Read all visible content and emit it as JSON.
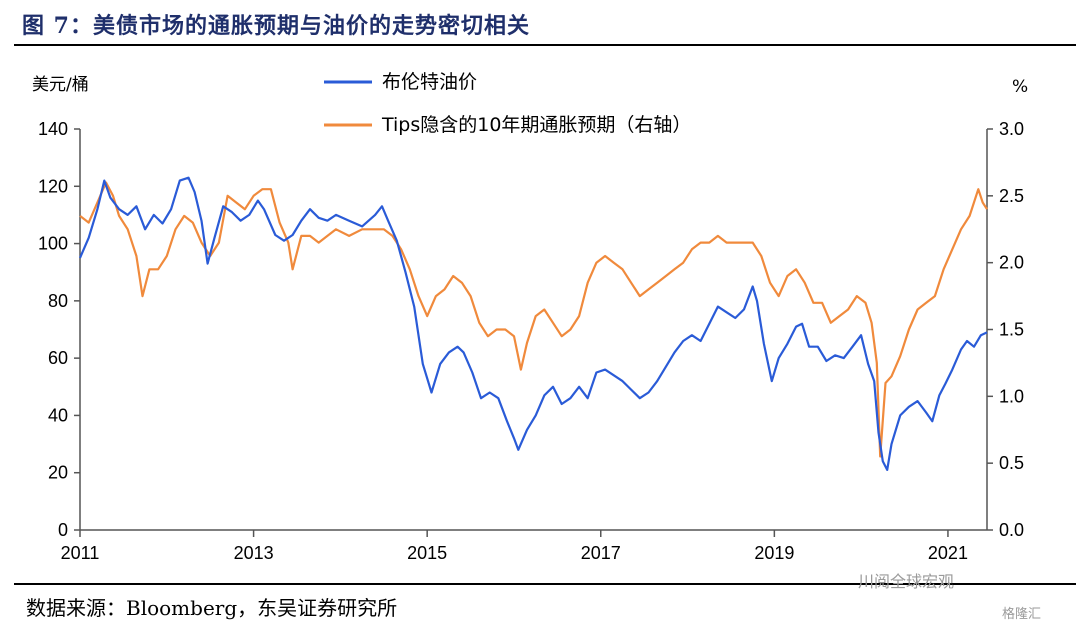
{
  "figure": {
    "title": "图 7：美债市场的通胀预期与油价的走势密切相关",
    "source": "数据来源：Bloomberg，东吴证券研究所",
    "watermark": "川阅全球宏观",
    "watermark2": "格隆汇"
  },
  "chart_data": {
    "type": "line",
    "title": "",
    "ylabel_left": "美元/桶",
    "ylabel_right": "%",
    "xlim": [
      2011.0,
      2021.45
    ],
    "ylim_left": [
      0,
      140
    ],
    "ylim_right": [
      0.0,
      3.0
    ],
    "x_ticks": [
      "2011",
      "2013",
      "2015",
      "2017",
      "2019",
      "2021"
    ],
    "y_ticks_left": [
      "0",
      "20",
      "40",
      "60",
      "80",
      "100",
      "120",
      "140"
    ],
    "y_ticks_right": [
      "0.0",
      "0.5",
      "1.0",
      "1.5",
      "2.0",
      "2.5",
      "3.0"
    ],
    "grid": false,
    "legend": "top-center",
    "series": [
      {
        "name": "布伦特油价",
        "axis": "left",
        "color": "#2a5bd7",
        "points": [
          [
            2011.0,
            95
          ],
          [
            2011.1,
            102
          ],
          [
            2011.2,
            112
          ],
          [
            2011.28,
            122
          ],
          [
            2011.35,
            116
          ],
          [
            2011.45,
            112
          ],
          [
            2011.55,
            110
          ],
          [
            2011.65,
            113
          ],
          [
            2011.75,
            105
          ],
          [
            2011.85,
            110
          ],
          [
            2011.95,
            107
          ],
          [
            2012.05,
            112
          ],
          [
            2012.15,
            122
          ],
          [
            2012.25,
            123
          ],
          [
            2012.32,
            118
          ],
          [
            2012.4,
            108
          ],
          [
            2012.47,
            93
          ],
          [
            2012.55,
            102
          ],
          [
            2012.65,
            113
          ],
          [
            2012.75,
            111
          ],
          [
            2012.85,
            108
          ],
          [
            2012.95,
            110
          ],
          [
            2013.05,
            115
          ],
          [
            2013.12,
            112
          ],
          [
            2013.25,
            103
          ],
          [
            2013.35,
            101
          ],
          [
            2013.45,
            103
          ],
          [
            2013.55,
            108
          ],
          [
            2013.65,
            112
          ],
          [
            2013.75,
            109
          ],
          [
            2013.85,
            108
          ],
          [
            2013.95,
            110
          ],
          [
            2014.1,
            108
          ],
          [
            2014.25,
            106
          ],
          [
            2014.4,
            110
          ],
          [
            2014.48,
            113
          ],
          [
            2014.55,
            108
          ],
          [
            2014.65,
            101
          ],
          [
            2014.75,
            90
          ],
          [
            2014.85,
            78
          ],
          [
            2014.95,
            58
          ],
          [
            2015.05,
            48
          ],
          [
            2015.15,
            58
          ],
          [
            2015.25,
            62
          ],
          [
            2015.35,
            64
          ],
          [
            2015.42,
            62
          ],
          [
            2015.52,
            55
          ],
          [
            2015.62,
            46
          ],
          [
            2015.72,
            48
          ],
          [
            2015.82,
            46
          ],
          [
            2015.92,
            38
          ],
          [
            2016.0,
            32
          ],
          [
            2016.05,
            28
          ],
          [
            2016.15,
            35
          ],
          [
            2016.25,
            40
          ],
          [
            2016.35,
            47
          ],
          [
            2016.45,
            50
          ],
          [
            2016.55,
            44
          ],
          [
            2016.65,
            46
          ],
          [
            2016.75,
            50
          ],
          [
            2016.85,
            46
          ],
          [
            2016.95,
            55
          ],
          [
            2017.05,
            56
          ],
          [
            2017.15,
            54
          ],
          [
            2017.25,
            52
          ],
          [
            2017.35,
            49
          ],
          [
            2017.45,
            46
          ],
          [
            2017.55,
            48
          ],
          [
            2017.65,
            52
          ],
          [
            2017.75,
            57
          ],
          [
            2017.85,
            62
          ],
          [
            2017.95,
            66
          ],
          [
            2018.05,
            68
          ],
          [
            2018.15,
            66
          ],
          [
            2018.25,
            72
          ],
          [
            2018.35,
            78
          ],
          [
            2018.45,
            76
          ],
          [
            2018.55,
            74
          ],
          [
            2018.65,
            77
          ],
          [
            2018.75,
            85
          ],
          [
            2018.8,
            80
          ],
          [
            2018.88,
            65
          ],
          [
            2018.97,
            52
          ],
          [
            2019.05,
            60
          ],
          [
            2019.15,
            65
          ],
          [
            2019.25,
            71
          ],
          [
            2019.32,
            72
          ],
          [
            2019.4,
            64
          ],
          [
            2019.5,
            64
          ],
          [
            2019.6,
            59
          ],
          [
            2019.7,
            61
          ],
          [
            2019.8,
            60
          ],
          [
            2019.9,
            64
          ],
          [
            2020.0,
            68
          ],
          [
            2020.08,
            58
          ],
          [
            2020.15,
            52
          ],
          [
            2020.2,
            34
          ],
          [
            2020.25,
            24
          ],
          [
            2020.3,
            21
          ],
          [
            2020.35,
            30
          ],
          [
            2020.45,
            40
          ],
          [
            2020.55,
            43
          ],
          [
            2020.65,
            45
          ],
          [
            2020.75,
            41
          ],
          [
            2020.82,
            38
          ],
          [
            2020.9,
            47
          ],
          [
            2020.97,
            51
          ],
          [
            2021.05,
            56
          ],
          [
            2021.15,
            63
          ],
          [
            2021.22,
            66
          ],
          [
            2021.3,
            64
          ],
          [
            2021.38,
            68
          ],
          [
            2021.45,
            69
          ]
        ]
      },
      {
        "name": "Tips隐含的10年期通胀预期（右轴）",
        "axis": "right",
        "color": "#f08a3c",
        "points": [
          [
            2011.0,
            2.35
          ],
          [
            2011.1,
            2.3
          ],
          [
            2011.2,
            2.45
          ],
          [
            2011.3,
            2.6
          ],
          [
            2011.38,
            2.5
          ],
          [
            2011.45,
            2.35
          ],
          [
            2011.55,
            2.25
          ],
          [
            2011.65,
            2.05
          ],
          [
            2011.72,
            1.75
          ],
          [
            2011.8,
            1.95
          ],
          [
            2011.9,
            1.95
          ],
          [
            2012.0,
            2.05
          ],
          [
            2012.1,
            2.25
          ],
          [
            2012.2,
            2.35
          ],
          [
            2012.3,
            2.3
          ],
          [
            2012.4,
            2.15
          ],
          [
            2012.5,
            2.05
          ],
          [
            2012.6,
            2.15
          ],
          [
            2012.7,
            2.5
          ],
          [
            2012.8,
            2.45
          ],
          [
            2012.9,
            2.4
          ],
          [
            2013.0,
            2.5
          ],
          [
            2013.1,
            2.55
          ],
          [
            2013.2,
            2.55
          ],
          [
            2013.3,
            2.3
          ],
          [
            2013.4,
            2.15
          ],
          [
            2013.45,
            1.95
          ],
          [
            2013.55,
            2.2
          ],
          [
            2013.65,
            2.2
          ],
          [
            2013.75,
            2.15
          ],
          [
            2013.85,
            2.2
          ],
          [
            2013.95,
            2.25
          ],
          [
            2014.1,
            2.2
          ],
          [
            2014.25,
            2.25
          ],
          [
            2014.4,
            2.25
          ],
          [
            2014.5,
            2.25
          ],
          [
            2014.6,
            2.2
          ],
          [
            2014.7,
            2.1
          ],
          [
            2014.8,
            1.95
          ],
          [
            2014.9,
            1.75
          ],
          [
            2015.0,
            1.6
          ],
          [
            2015.1,
            1.75
          ],
          [
            2015.2,
            1.8
          ],
          [
            2015.3,
            1.9
          ],
          [
            2015.4,
            1.85
          ],
          [
            2015.5,
            1.75
          ],
          [
            2015.6,
            1.55
          ],
          [
            2015.7,
            1.45
          ],
          [
            2015.8,
            1.5
          ],
          [
            2015.9,
            1.5
          ],
          [
            2016.0,
            1.45
          ],
          [
            2016.08,
            1.2
          ],
          [
            2016.15,
            1.4
          ],
          [
            2016.25,
            1.6
          ],
          [
            2016.35,
            1.65
          ],
          [
            2016.45,
            1.55
          ],
          [
            2016.55,
            1.45
          ],
          [
            2016.65,
            1.5
          ],
          [
            2016.75,
            1.6
          ],
          [
            2016.85,
            1.85
          ],
          [
            2016.95,
            2.0
          ],
          [
            2017.05,
            2.05
          ],
          [
            2017.15,
            2.0
          ],
          [
            2017.25,
            1.95
          ],
          [
            2017.35,
            1.85
          ],
          [
            2017.45,
            1.75
          ],
          [
            2017.55,
            1.8
          ],
          [
            2017.65,
            1.85
          ],
          [
            2017.75,
            1.9
          ],
          [
            2017.85,
            1.95
          ],
          [
            2017.95,
            2.0
          ],
          [
            2018.05,
            2.1
          ],
          [
            2018.15,
            2.15
          ],
          [
            2018.25,
            2.15
          ],
          [
            2018.35,
            2.2
          ],
          [
            2018.45,
            2.15
          ],
          [
            2018.55,
            2.15
          ],
          [
            2018.65,
            2.15
          ],
          [
            2018.75,
            2.15
          ],
          [
            2018.85,
            2.05
          ],
          [
            2018.95,
            1.85
          ],
          [
            2019.05,
            1.75
          ],
          [
            2019.15,
            1.9
          ],
          [
            2019.25,
            1.95
          ],
          [
            2019.35,
            1.85
          ],
          [
            2019.45,
            1.7
          ],
          [
            2019.55,
            1.7
          ],
          [
            2019.65,
            1.55
          ],
          [
            2019.75,
            1.6
          ],
          [
            2019.85,
            1.65
          ],
          [
            2019.95,
            1.75
          ],
          [
            2020.05,
            1.7
          ],
          [
            2020.12,
            1.55
          ],
          [
            2020.18,
            1.25
          ],
          [
            2020.22,
            0.55
          ],
          [
            2020.28,
            1.1
          ],
          [
            2020.35,
            1.15
          ],
          [
            2020.45,
            1.3
          ],
          [
            2020.55,
            1.5
          ],
          [
            2020.65,
            1.65
          ],
          [
            2020.75,
            1.7
          ],
          [
            2020.85,
            1.75
          ],
          [
            2020.95,
            1.95
          ],
          [
            2021.05,
            2.1
          ],
          [
            2021.15,
            2.25
          ],
          [
            2021.25,
            2.35
          ],
          [
            2021.35,
            2.55
          ],
          [
            2021.4,
            2.45
          ],
          [
            2021.45,
            2.4
          ]
        ]
      }
    ]
  }
}
